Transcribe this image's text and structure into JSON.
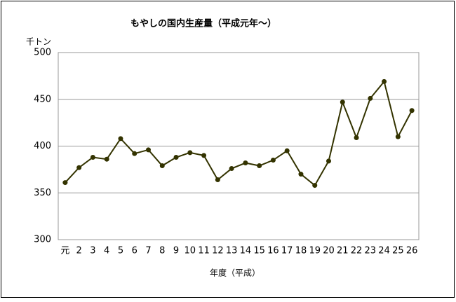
{
  "chart_data": {
    "type": "line",
    "title": "もやしの国内生産量（平成元年～）",
    "y_unit": "千トン",
    "x_label": "年度（平成）",
    "categories": [
      "元",
      "2",
      "3",
      "4",
      "5",
      "6",
      "7",
      "8",
      "9",
      "10",
      "11",
      "12",
      "13",
      "14",
      "15",
      "16",
      "17",
      "18",
      "19",
      "20",
      "21",
      "22",
      "23",
      "24",
      "25",
      "26"
    ],
    "values": [
      361,
      377,
      388,
      386,
      408,
      392,
      396,
      379,
      388,
      393,
      390,
      364,
      376,
      382,
      379,
      385,
      395,
      370,
      358,
      384,
      447,
      409,
      451,
      469,
      410,
      438
    ],
    "color": "#333300",
    "ylim": [
      300,
      500
    ],
    "yticks": [
      300,
      350,
      400,
      450,
      500
    ],
    "grid": true
  }
}
